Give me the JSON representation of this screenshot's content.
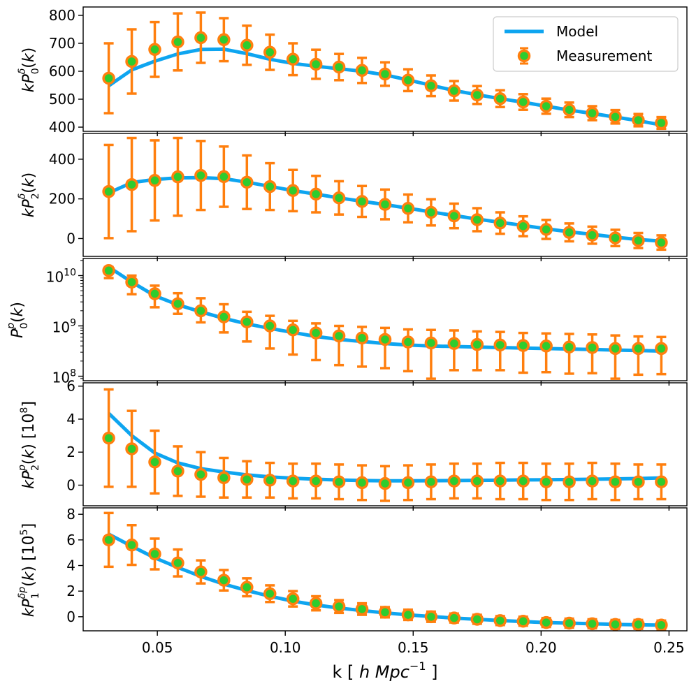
{
  "chart_data": {
    "type": "line",
    "layout": "5 stacked panels sharing x-axis",
    "xlabel": "k  [ h Mpc^-1 ]",
    "xlim": [
      0.021,
      0.257
    ],
    "xticks": [
      0.05,
      0.1,
      0.15,
      0.2,
      0.25
    ],
    "xtick_labels": [
      "0.05",
      "0.10",
      "0.15",
      "0.20",
      "0.25"
    ],
    "legend": {
      "position": "top-right",
      "entries": [
        "Model",
        "Measurement"
      ]
    },
    "colors": {
      "model": "#0ea5f0",
      "marker_edge": "#ff7f0e",
      "marker_face": "#2ecc2e",
      "errorbar": "#ff7f0e"
    },
    "k": [
      0.031,
      0.04,
      0.049,
      0.058,
      0.067,
      0.076,
      0.085,
      0.094,
      0.103,
      0.112,
      0.121,
      0.13,
      0.139,
      0.148,
      0.157,
      0.166,
      0.175,
      0.184,
      0.193,
      0.202,
      0.211,
      0.22,
      0.229,
      0.238,
      0.247
    ],
    "panels": [
      {
        "name": "P0_delta",
        "ylabel": "kP_0^δ(k)",
        "yscale": "linear",
        "ylim": [
          385,
          830
        ],
        "yticks": [
          400,
          500,
          600,
          700,
          800
        ],
        "ytick_labels": [
          "400",
          "500",
          "600",
          "700",
          "800"
        ],
        "measurement": [
          575,
          635,
          678,
          705,
          720,
          713,
          693,
          668,
          643,
          625,
          615,
          603,
          590,
          568,
          548,
          530,
          515,
          502,
          490,
          475,
          462,
          450,
          437,
          425,
          415
        ],
        "error": [
          125,
          115,
          98,
          102,
          90,
          77,
          70,
          63,
          57,
          52,
          47,
          45,
          42,
          39,
          37,
          35,
          32,
          30,
          28,
          27,
          26,
          25,
          24,
          22,
          21
        ],
        "model": [
          548,
          605,
          636,
          662,
          678,
          679,
          663,
          643,
          628,
          618,
          609,
          600,
          587,
          569,
          550,
          531,
          516,
          502,
          489,
          475,
          461,
          449,
          436,
          423,
          408
        ]
      },
      {
        "name": "P2_delta",
        "ylabel": "kP_2^δ(k)",
        "yscale": "linear",
        "ylim": [
          -90,
          530
        ],
        "yticks": [
          0,
          200,
          400
        ],
        "ytick_labels": [
          "0",
          "200",
          "400"
        ],
        "measurement": [
          237,
          272,
          293,
          311,
          318,
          312,
          284,
          262,
          242,
          224,
          205,
          187,
          172,
          152,
          132,
          114,
          95,
          78,
          62,
          46,
          31,
          17,
          3,
          -10,
          -20
        ],
        "error": [
          235,
          235,
          202,
          196,
          174,
          152,
          135,
          118,
          104,
          92,
          84,
          78,
          75,
          70,
          66,
          62,
          58,
          54,
          50,
          48,
          45,
          43,
          41,
          38,
          36
        ],
        "model": [
          230,
          282,
          298,
          306,
          307,
          302,
          284,
          263,
          242,
          224,
          205,
          188,
          171,
          153,
          134,
          116,
          98,
          82,
          66,
          49,
          34,
          21,
          7,
          -5,
          -13
        ]
      },
      {
        "name": "P0_p",
        "ylabel": "P_0^p(k)",
        "yscale": "log",
        "ylim_log10": [
          7.91,
          10.34
        ],
        "yticks_log10": [
          8,
          9,
          10
        ],
        "ytick_labels": [
          "10^8",
          "10^9",
          "10^10"
        ],
        "measurement_log10": [
          10.1,
          9.87,
          9.64,
          9.44,
          9.3,
          9.18,
          9.08,
          9.0,
          8.92,
          8.86,
          8.8,
          8.76,
          8.73,
          8.68,
          8.66,
          8.65,
          8.63,
          8.62,
          8.61,
          8.6,
          8.58,
          8.57,
          8.55,
          8.55,
          8.55
        ],
        "error_low_log10": [
          9.95,
          9.63,
          9.37,
          9.24,
          9.07,
          8.87,
          8.69,
          8.55,
          8.43,
          8.32,
          8.22,
          8.19,
          8.16,
          8.1,
          7.95,
          8.12,
          8.12,
          8.12,
          8.07,
          8.08,
          8.05,
          8.06,
          7.95,
          8.03,
          8.04
        ],
        "error_high_log10": [
          10.17,
          10.0,
          9.8,
          9.65,
          9.55,
          9.43,
          9.28,
          9.2,
          9.1,
          9.05,
          9.0,
          8.98,
          8.96,
          8.93,
          8.92,
          8.91,
          8.89,
          8.88,
          8.86,
          8.85,
          8.84,
          8.83,
          8.81,
          8.79,
          8.78
        ],
        "model_log10": [
          10.17,
          9.87,
          9.6,
          9.42,
          9.28,
          9.15,
          9.04,
          8.95,
          8.87,
          8.79,
          8.73,
          8.69,
          8.65,
          8.62,
          8.6,
          8.59,
          8.58,
          8.57,
          8.56,
          8.55,
          8.54,
          8.53,
          8.52,
          8.51,
          8.5
        ]
      },
      {
        "name": "P2_p",
        "ylabel": "kP_2^p(k) [10^8]",
        "yscale": "linear",
        "ylim": [
          -1.25,
          6.2
        ],
        "yticks": [
          0,
          2,
          4,
          6
        ],
        "ytick_labels": [
          "0",
          "2",
          "4",
          "6"
        ],
        "measurement": [
          2.85,
          2.2,
          1.4,
          0.85,
          0.65,
          0.45,
          0.35,
          0.3,
          0.25,
          0.25,
          0.2,
          0.15,
          0.1,
          0.15,
          0.2,
          0.25,
          0.25,
          0.25,
          0.25,
          0.2,
          0.2,
          0.25,
          0.2,
          0.2,
          0.2
        ],
        "error": [
          2.95,
          2.3,
          1.9,
          1.5,
          1.35,
          1.2,
          1.1,
          1.05,
          1.05,
          1.05,
          1.05,
          1.05,
          1.05,
          1.05,
          1.05,
          1.05,
          1.05,
          1.1,
          1.1,
          1.1,
          1.1,
          1.1,
          1.1,
          1.05,
          1.05
        ],
        "model": [
          4.35,
          3.0,
          1.95,
          1.35,
          1.0,
          0.8,
          0.62,
          0.5,
          0.42,
          0.36,
          0.31,
          0.28,
          0.26,
          0.26,
          0.27,
          0.28,
          0.29,
          0.3,
          0.32,
          0.33,
          0.34,
          0.36,
          0.38,
          0.4,
          0.44
        ]
      },
      {
        "name": "P1_deltap",
        "ylabel": "kP_1^δp(k) [10^5]",
        "yscale": "linear",
        "ylim": [
          -1.1,
          8.5
        ],
        "yticks": [
          0,
          2,
          4,
          6,
          8
        ],
        "ytick_labels": [
          "0",
          "2",
          "4",
          "6",
          "8"
        ],
        "measurement": [
          6.0,
          5.6,
          4.9,
          4.2,
          3.5,
          2.85,
          2.3,
          1.8,
          1.4,
          1.05,
          0.8,
          0.6,
          0.35,
          0.15,
          0.0,
          -0.1,
          -0.2,
          -0.3,
          -0.35,
          -0.45,
          -0.5,
          -0.55,
          -0.6,
          -0.6,
          -0.65
        ],
        "error": [
          2.1,
          1.55,
          1.2,
          1.05,
          0.9,
          0.8,
          0.7,
          0.65,
          0.6,
          0.55,
          0.5,
          0.45,
          0.4,
          0.4,
          0.4,
          0.35,
          0.35,
          0.35,
          0.35,
          0.35,
          0.35,
          0.35,
          0.35,
          0.35,
          0.35
        ],
        "model": [
          6.45,
          5.5,
          4.6,
          3.85,
          3.15,
          2.55,
          2.05,
          1.6,
          1.22,
          0.92,
          0.68,
          0.48,
          0.3,
          0.15,
          0.02,
          -0.1,
          -0.2,
          -0.3,
          -0.38,
          -0.45,
          -0.5,
          -0.55,
          -0.6,
          -0.63,
          -0.66
        ]
      }
    ]
  }
}
